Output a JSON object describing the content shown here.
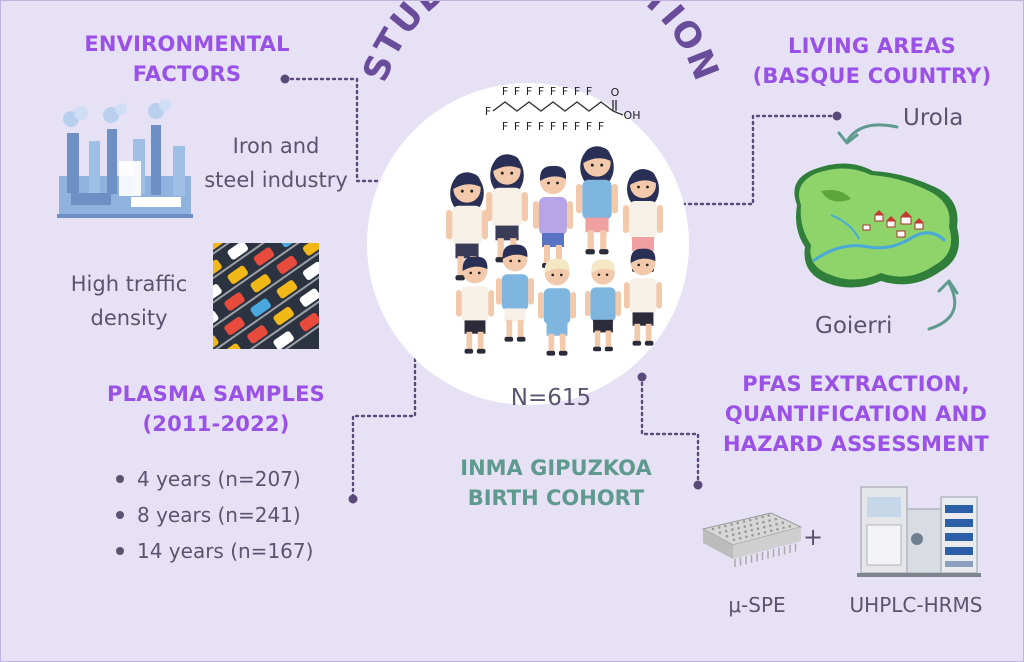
{
  "title": "STUDY POPULATION",
  "environmental_factors": {
    "heading_line1": "ENVIRONMENTAL",
    "heading_line2": "FACTORS",
    "item1_line1": "Iron and",
    "item1_line2": "steel industry",
    "item2_line1": "High traffic",
    "item2_line2": "density"
  },
  "living_areas": {
    "heading_line1": "LIVING AREAS",
    "heading_line2": "(BASQUE COUNTRY)",
    "area1": "Urola",
    "area2": "Goierri"
  },
  "plasma_samples": {
    "heading_line1": "PLASMA SAMPLES",
    "heading_line2": "(2011-2022)",
    "items": [
      "4 years (n=207)",
      "8 years (n=241)",
      "14 years (n=167)"
    ]
  },
  "center": {
    "n_label": "N=615",
    "molecule_label_oh": "OH",
    "molecule_label_o": "O",
    "molecule_label_f": "F"
  },
  "cohort": {
    "line1": "INMA GIPUZKOA",
    "line2": "BIRTH COHORT"
  },
  "pfas": {
    "heading_line1": "PFAS EXTRACTION,",
    "heading_line2": "QUANTIFICATION AND",
    "heading_line3": "HAZARD ASSESSMENT",
    "plus": "+",
    "method1": "μ-SPE",
    "method2": "UHPLC-HRMS"
  },
  "colors": {
    "background": "#e7e1f6",
    "accent_purple": "#9a52e6",
    "title_purple": "#6a4d9a",
    "teal": "#5e9a8d",
    "text": "#5a5470",
    "connector": "#5a4a7a"
  }
}
